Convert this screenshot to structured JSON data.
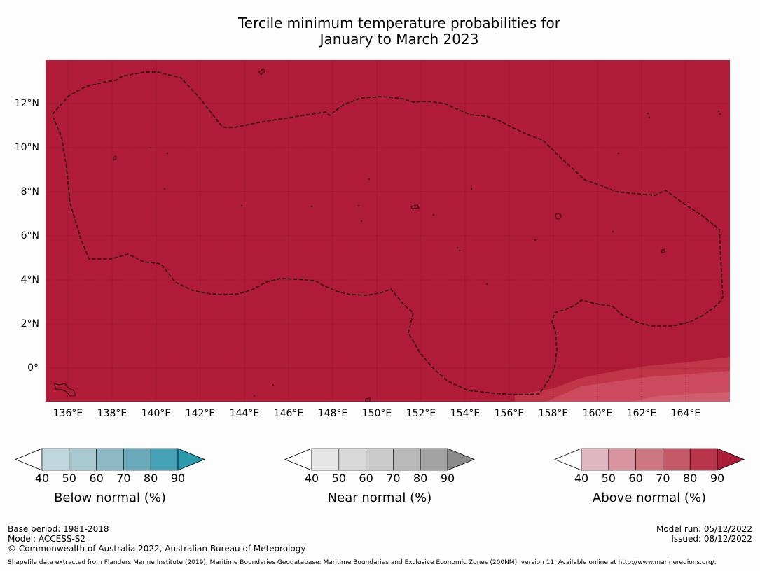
{
  "title": {
    "line1": "Tercile minimum temperature probabilities for",
    "line2": "January to March 2023"
  },
  "map": {
    "background_color": "#b01c38",
    "lat_labels": [
      "12°N",
      "10°N",
      "8°N",
      "6°N",
      "4°N",
      "2°N",
      "0°"
    ],
    "lon_labels": [
      "136°E",
      "138°E",
      "140°E",
      "142°E",
      "144°E",
      "146°E",
      "148°E",
      "150°E",
      "152°E",
      "154°E",
      "156°E",
      "158°E",
      "160°E",
      "162°E",
      "164°E"
    ],
    "eez_boundary": "dashed"
  },
  "legends": [
    {
      "title": "Below normal (%)",
      "ticks": [
        "40",
        "50",
        "60",
        "70",
        "80",
        "90"
      ],
      "colors": [
        "#ffffff",
        "#c1d7de",
        "#a9c9d1",
        "#8db9c6",
        "#6aaabb",
        "#45a1b5",
        "#2c98ac"
      ]
    },
    {
      "title": "Near normal (%)",
      "ticks": [
        "40",
        "50",
        "60",
        "70",
        "80",
        "90"
      ],
      "colors": [
        "#ffffff",
        "#e6e6e6",
        "#d9d9d9",
        "#cbcbcb",
        "#b9b9b9",
        "#a3a3a3",
        "#8a8a8a"
      ]
    },
    {
      "title": "Above normal (%)",
      "ticks": [
        "40",
        "50",
        "60",
        "70",
        "80",
        "90"
      ],
      "colors": [
        "#ffffff",
        "#e1b8c1",
        "#d9959f",
        "#cd7780",
        "#c45a68",
        "#b9354a",
        "#ad1c36"
      ]
    }
  ],
  "footer": {
    "base_period": "Base period: 1981-2018",
    "model": "Model: ACCESS-S2",
    "copyright": "© Commonwealth of Australia 2022, Australian Bureau of Meteorology",
    "model_run": "Model run: 05/12/2022",
    "issued": "Issued: 08/12/2022",
    "shapefile_note": "Shapefile data extracted from Flanders Marine Institute (2019), Maritime Boundaries Geodatabase: Maritime Boundaries and Exclusive Economic Zones (200NM), version 11. Available online at http://www.marineregions.org/."
  }
}
